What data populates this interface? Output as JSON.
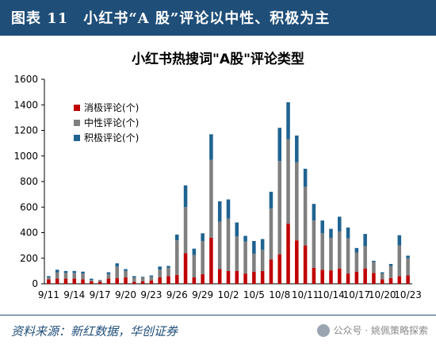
{
  "header": {
    "title": "图表 11　小红书“A 股”评论以中性、积极为主"
  },
  "footer": {
    "source": "资料来源：新红数据，华创证券",
    "watermark": "公众号 · 姚佩策略探索"
  },
  "colors": {
    "negative": "#c00000",
    "neutral": "#7f7f7f",
    "positive": "#1f6391",
    "header_bg": "#1f4e79"
  },
  "chart_data": {
    "type": "bar",
    "stacked": true,
    "title": "小红书热搜词\"A股\"评论类型",
    "xlabel": "",
    "ylabel": "",
    "ylim": [
      0,
      1600
    ],
    "yticks": [
      0,
      200,
      400,
      600,
      800,
      1000,
      1200,
      1400,
      1600
    ],
    "grid": false,
    "legend_position": "top-left",
    "categories": [
      "9/11",
      "9/12",
      "9/13",
      "9/14",
      "9/15",
      "9/16",
      "9/17",
      "9/18",
      "9/19",
      "9/20",
      "9/21",
      "9/22",
      "9/23",
      "9/24",
      "9/25",
      "9/26",
      "9/27",
      "9/28",
      "9/29",
      "9/30",
      "10/1",
      "10/2",
      "10/3",
      "10/4",
      "10/5",
      "10/6",
      "10/7",
      "10/8",
      "10/9",
      "10/10",
      "10/11",
      "10/12",
      "10/13",
      "10/14",
      "10/15",
      "10/16",
      "10/17",
      "10/18",
      "10/19",
      "10/20",
      "10/21",
      "10/22",
      "10/23"
    ],
    "xtick_labels": [
      "9/11",
      "9/14",
      "9/17",
      "9/20",
      "9/23",
      "9/26",
      "9/29",
      "10/2",
      "10/5",
      "10/8",
      "10/11",
      "10/14",
      "10/17",
      "10/20"
    ],
    "series": [
      {
        "name": "消极评论(个)",
        "color": "#c00000",
        "values": [
          35,
          40,
          40,
          40,
          35,
          20,
          15,
          40,
          45,
          50,
          15,
          20,
          25,
          50,
          60,
          70,
          240,
          50,
          75,
          360,
          115,
          100,
          100,
          80,
          95,
          100,
          190,
          230,
          470,
          340,
          300,
          125,
          110,
          105,
          120,
          80,
          95,
          120,
          85,
          35,
          45,
          60,
          65
        ]
      },
      {
        "name": "中性评论(个)",
        "color": "#7f7f7f",
        "values": [
          15,
          50,
          45,
          45,
          45,
          10,
          15,
          35,
          90,
          50,
          35,
          30,
          30,
          60,
          65,
          270,
          360,
          175,
          260,
          610,
          370,
          410,
          270,
          250,
          140,
          165,
          400,
          730,
          660,
          610,
          460,
          370,
          285,
          255,
          290,
          275,
          150,
          175,
          85,
          45,
          95,
          240,
          135
        ]
      },
      {
        "name": "积极评论(个)",
        "color": "#1f6391",
        "values": [
          10,
          20,
          15,
          15,
          15,
          10,
          0,
          15,
          25,
          15,
          10,
          5,
          10,
          25,
          15,
          45,
          170,
          50,
          60,
          200,
          160,
          150,
          110,
          45,
          100,
          85,
          130,
          260,
          290,
          210,
          140,
          130,
          100,
          70,
          115,
          85,
          35,
          95,
          10,
          10,
          15,
          80,
          20
        ]
      }
    ]
  }
}
